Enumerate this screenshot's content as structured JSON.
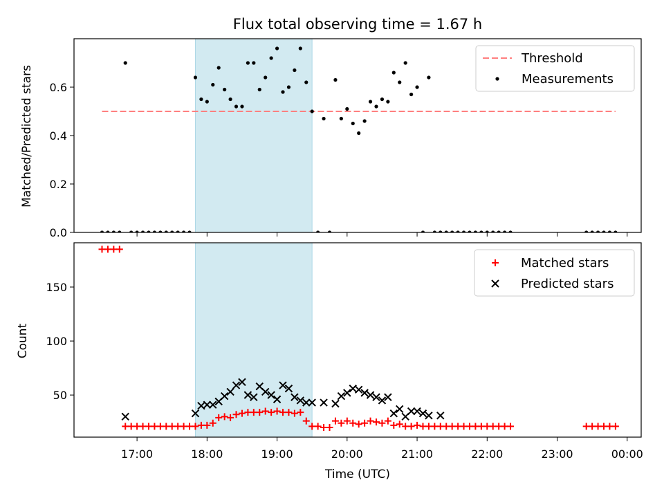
{
  "chart_data": {
    "type": "scatter",
    "title": "Flux total observing time = 1.67 h",
    "xlabel": "Time (UTC)",
    "x_ticks": [
      "17:00",
      "18:00",
      "19:00",
      "20:00",
      "21:00",
      "22:00",
      "23:00",
      "00:00"
    ],
    "highlight_span": [
      "17:50",
      "19:30"
    ],
    "colors": {
      "highlight": "#add8e6",
      "threshold": "#ff7f7f",
      "measurements": "#000000",
      "matched": "#ff0000",
      "predicted": "#000000"
    },
    "panels": [
      {
        "id": "ratio",
        "ylabel": "Matched/Predicted stars",
        "ylim": [
          0,
          0.8
        ],
        "y_ticks": [
          "0.0",
          "0.2",
          "0.4",
          "0.6"
        ],
        "legend": {
          "position": "top-right",
          "entries": [
            "Threshold",
            "Measurements"
          ]
        },
        "threshold": {
          "name": "Threshold",
          "value": 0.5,
          "x_range": [
            "16:30",
            "23:50"
          ]
        },
        "measurements": {
          "name": "Measurements",
          "x": [
            "16:30",
            "16:35",
            "16:40",
            "16:45",
            "16:50",
            "16:55",
            "17:00",
            "17:05",
            "17:10",
            "17:15",
            "17:20",
            "17:25",
            "17:30",
            "17:35",
            "17:40",
            "17:45",
            "17:50",
            "17:55",
            "18:00",
            "18:05",
            "18:10",
            "18:15",
            "18:20",
            "18:25",
            "18:30",
            "18:35",
            "18:40",
            "18:45",
            "18:50",
            "18:55",
            "19:00",
            "19:05",
            "19:10",
            "19:15",
            "19:20",
            "19:25",
            "19:30",
            "19:35",
            "19:40",
            "19:45",
            "19:50",
            "19:55",
            "20:00",
            "20:05",
            "20:10",
            "20:15",
            "20:20",
            "20:25",
            "20:30",
            "20:35",
            "20:40",
            "20:45",
            "20:50",
            "20:55",
            "21:00",
            "21:05",
            "21:10",
            "21:15",
            "21:20",
            "21:25",
            "21:30",
            "21:35",
            "21:40",
            "21:45",
            "21:50",
            "21:55",
            "22:00",
            "22:05",
            "22:10",
            "22:15",
            "22:20",
            "23:25",
            "23:30",
            "23:35",
            "23:40",
            "23:45",
            "23:50"
          ],
          "y": [
            0,
            0,
            0,
            0,
            0.7,
            0,
            0,
            0,
            0,
            0,
            0,
            0,
            0,
            0,
            0,
            0,
            0.64,
            0.55,
            0.54,
            0.61,
            0.68,
            0.59,
            0.55,
            0.52,
            0.52,
            0.7,
            0.7,
            0.59,
            0.64,
            0.72,
            0.76,
            0.58,
            0.6,
            0.67,
            0.76,
            0.62,
            0.5,
            0,
            0.47,
            0,
            0.63,
            0.47,
            0.51,
            0.45,
            0.41,
            0.46,
            0.54,
            0.52,
            0.55,
            0.54,
            0.66,
            0.62,
            0.7,
            0.57,
            0.6,
            0,
            0.64,
            0,
            0,
            0,
            0,
            0,
            0,
            0,
            0,
            0,
            0,
            0,
            0,
            0,
            0,
            0,
            0,
            0,
            0,
            0,
            0
          ]
        }
      },
      {
        "id": "count",
        "ylabel": "Count",
        "ylim": [
          11,
          191
        ],
        "y_ticks": [
          "50",
          "100",
          "150"
        ],
        "legend": {
          "position": "top-right",
          "entries": [
            "Matched stars",
            "Predicted stars"
          ]
        },
        "matched": {
          "name": "Matched stars",
          "x": [
            "16:30",
            "16:35",
            "16:40",
            "16:45",
            "16:50",
            "16:55",
            "17:00",
            "17:05",
            "17:10",
            "17:15",
            "17:20",
            "17:25",
            "17:30",
            "17:35",
            "17:40",
            "17:45",
            "17:50",
            "17:55",
            "18:00",
            "18:05",
            "18:10",
            "18:15",
            "18:20",
            "18:25",
            "18:30",
            "18:35",
            "18:40",
            "18:45",
            "18:50",
            "18:55",
            "19:00",
            "19:05",
            "19:10",
            "19:15",
            "19:20",
            "19:25",
            "19:30",
            "19:35",
            "19:40",
            "19:45",
            "19:50",
            "19:55",
            "20:00",
            "20:05",
            "20:10",
            "20:15",
            "20:20",
            "20:25",
            "20:30",
            "20:35",
            "20:40",
            "20:45",
            "20:50",
            "20:55",
            "21:00",
            "21:05",
            "21:10",
            "21:15",
            "21:20",
            "21:25",
            "21:30",
            "21:35",
            "21:40",
            "21:45",
            "21:50",
            "21:55",
            "22:00",
            "22:05",
            "22:10",
            "22:15",
            "22:20",
            "23:25",
            "23:30",
            "23:35",
            "23:40",
            "23:45",
            "23:50"
          ],
          "y": [
            185,
            185,
            185,
            185,
            21,
            21,
            21,
            21,
            21,
            21,
            21,
            21,
            21,
            21,
            21,
            21,
            21,
            22,
            22,
            24,
            29,
            30,
            29,
            32,
            33,
            34,
            34,
            34,
            35,
            34,
            35,
            34,
            34,
            33,
            34,
            26,
            21,
            21,
            20,
            20,
            26,
            24,
            26,
            24,
            23,
            24,
            26,
            25,
            24,
            26,
            22,
            23,
            21,
            21,
            22,
            21,
            21,
            21,
            21,
            21,
            21,
            21,
            21,
            21,
            21,
            21,
            21,
            21,
            21,
            21,
            21,
            21,
            21,
            21,
            21,
            21,
            21
          ]
        },
        "predicted": {
          "name": "Predicted stars",
          "x": [
            "16:50",
            "17:50",
            "17:55",
            "18:00",
            "18:05",
            "18:10",
            "18:15",
            "18:20",
            "18:25",
            "18:30",
            "18:35",
            "18:40",
            "18:45",
            "18:50",
            "18:55",
            "19:00",
            "19:05",
            "19:10",
            "19:15",
            "19:20",
            "19:25",
            "19:30",
            "19:40",
            "19:50",
            "19:55",
            "20:00",
            "20:05",
            "20:10",
            "20:15",
            "20:20",
            "20:25",
            "20:30",
            "20:35",
            "20:40",
            "20:45",
            "20:50",
            "20:55",
            "21:00",
            "21:05",
            "21:10",
            "21:20"
          ],
          "y": [
            30,
            33,
            40,
            41,
            41,
            44,
            49,
            53,
            59,
            62,
            50,
            48,
            58,
            53,
            50,
            46,
            59,
            56,
            48,
            45,
            43,
            43,
            43,
            42,
            49,
            52,
            56,
            55,
            52,
            50,
            48,
            45,
            48,
            33,
            37,
            30,
            35,
            35,
            33,
            31,
            31
          ]
        }
      }
    ]
  }
}
